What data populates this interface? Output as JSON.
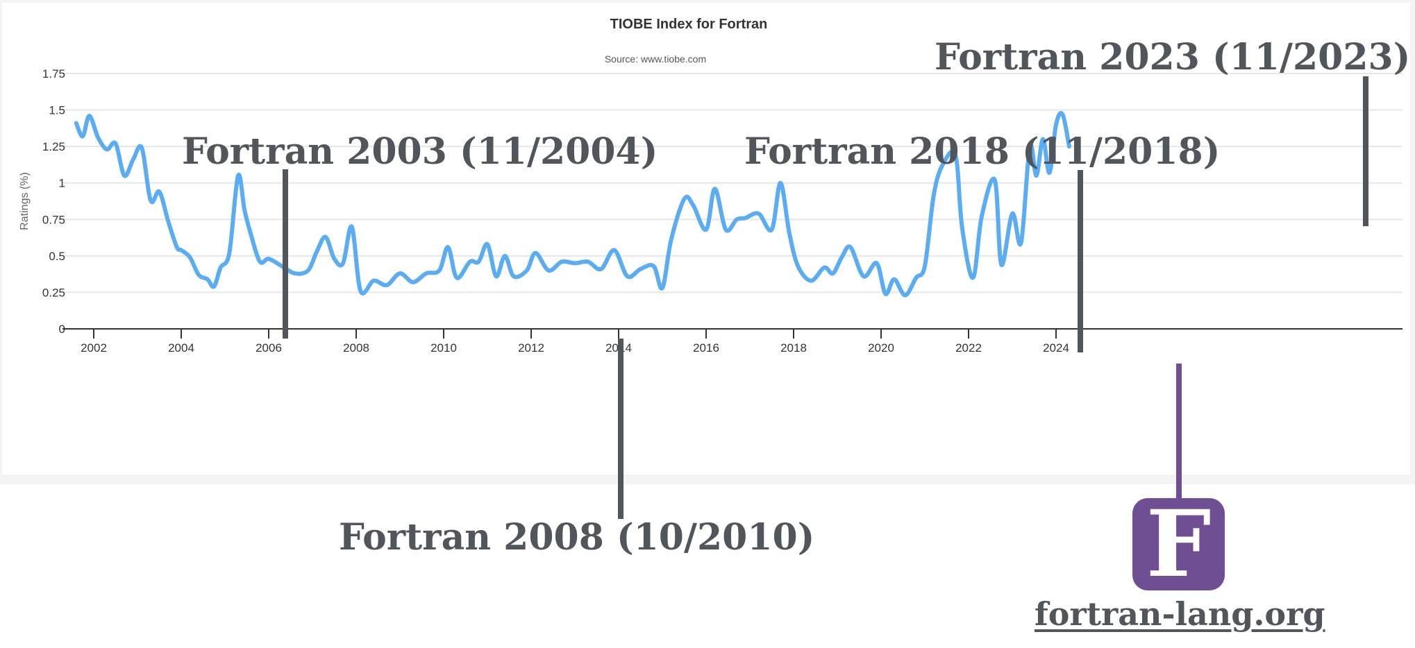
{
  "chart": {
    "title": "TIOBE Index for Fortran",
    "subtitle": "Source: www.tiobe.com",
    "y_axis_label": "Ratings (%)",
    "y_ticks": [
      "0",
      "0.25",
      "0.5",
      "0.75",
      "1",
      "1.25",
      "1.5",
      "1.75"
    ],
    "x_ticks": [
      "2002",
      "2004",
      "2006",
      "2008",
      "2010",
      "2012",
      "2014",
      "2016",
      "2018",
      "2020",
      "2022",
      "2024"
    ]
  },
  "annotations": {
    "f2003": "Fortran 2003 (11/2004)",
    "f2008": "Fortran 2008 (10/2010)",
    "f2018": "Fortran 2018 (11/2018)",
    "f2023": "Fortran 2023 (11/2023)"
  },
  "logo": {
    "letter": "F",
    "link_text": "fortran-lang.org"
  },
  "colors": {
    "line": "#5aacf3",
    "marker_dark": "#51565c",
    "marker_purple": "#6f4e93",
    "grid": "#e6e6e6"
  },
  "chart_data": {
    "type": "line",
    "title": "TIOBE Index for Fortran",
    "subtitle": "Source: www.tiobe.com",
    "xlabel": "",
    "ylabel": "Ratings (%)",
    "ylim": [
      0,
      1.75
    ],
    "xlim": [
      2001.3,
      2024.6
    ],
    "grid": true,
    "legend": "none",
    "series": [
      {
        "name": "Fortran",
        "x": [
          2001.6,
          2001.75,
          2001.9,
          2002.1,
          2002.3,
          2002.5,
          2002.7,
          2002.9,
          2003.1,
          2003.3,
          2003.5,
          2003.7,
          2003.9,
          2004.0,
          2004.2,
          2004.4,
          2004.6,
          2004.75,
          2004.9,
          2005.1,
          2005.3,
          2005.45,
          2005.6,
          2005.8,
          2006.0,
          2006.3,
          2006.6,
          2006.9,
          2007.1,
          2007.3,
          2007.5,
          2007.7,
          2007.9,
          2008.1,
          2008.4,
          2008.7,
          2009.0,
          2009.3,
          2009.6,
          2009.9,
          2010.1,
          2010.3,
          2010.6,
          2010.8,
          2011.0,
          2011.2,
          2011.4,
          2011.6,
          2011.9,
          2012.1,
          2012.4,
          2012.7,
          2013.0,
          2013.3,
          2013.6,
          2013.9,
          2014.2,
          2014.5,
          2014.8,
          2015.0,
          2015.2,
          2015.5,
          2015.7,
          2016.0,
          2016.2,
          2016.45,
          2016.7,
          2016.9,
          2017.2,
          2017.5,
          2017.7,
          2017.9,
          2018.1,
          2018.4,
          2018.7,
          2018.9,
          2019.1,
          2019.3,
          2019.6,
          2019.9,
          2020.1,
          2020.3,
          2020.55,
          2020.8,
          2021.0,
          2021.2,
          2021.4,
          2021.7,
          2021.85,
          2022.1,
          2022.3,
          2022.6,
          2022.75,
          2023.0,
          2023.2,
          2023.4,
          2023.55,
          2023.7,
          2023.85,
          2024.0,
          2024.15,
          2024.3
        ],
        "values": [
          1.41,
          1.32,
          1.46,
          1.31,
          1.23,
          1.27,
          1.05,
          1.16,
          1.24,
          0.88,
          0.94,
          0.74,
          0.56,
          0.54,
          0.49,
          0.37,
          0.34,
          0.29,
          0.42,
          0.52,
          1.05,
          0.81,
          0.64,
          0.46,
          0.48,
          0.43,
          0.38,
          0.4,
          0.53,
          0.63,
          0.48,
          0.45,
          0.7,
          0.26,
          0.33,
          0.3,
          0.38,
          0.32,
          0.38,
          0.4,
          0.56,
          0.35,
          0.46,
          0.46,
          0.58,
          0.36,
          0.5,
          0.36,
          0.4,
          0.52,
          0.4,
          0.46,
          0.45,
          0.46,
          0.41,
          0.54,
          0.36,
          0.41,
          0.43,
          0.28,
          0.61,
          0.89,
          0.85,
          0.68,
          0.96,
          0.68,
          0.75,
          0.76,
          0.79,
          0.68,
          1.0,
          0.66,
          0.43,
          0.33,
          0.42,
          0.38,
          0.49,
          0.56,
          0.36,
          0.45,
          0.24,
          0.34,
          0.23,
          0.35,
          0.43,
          0.91,
          1.12,
          1.19,
          0.7,
          0.35,
          0.77,
          1.02,
          0.44,
          0.79,
          0.59,
          1.25,
          1.05,
          1.3,
          1.07,
          1.4,
          1.47,
          1.25
        ]
      }
    ],
    "annotations": [
      {
        "text": "Fortran 2003 (11/2004)",
        "x": 2004.9,
        "marker_color": "#51565c"
      },
      {
        "text": "Fortran 2008 (10/2010)",
        "x": 2010.8,
        "marker_color": "#51565c"
      },
      {
        "text": "Fortran 2018 (11/2018)",
        "x": 2018.9,
        "marker_color": "#51565c"
      },
      {
        "text": "Fortran 2023 (11/2023)",
        "x": 2023.9,
        "marker_color": "#51565c"
      },
      {
        "text": "fortran-lang.org",
        "x": 2020.6,
        "marker_color": "#6f4e93"
      }
    ]
  }
}
